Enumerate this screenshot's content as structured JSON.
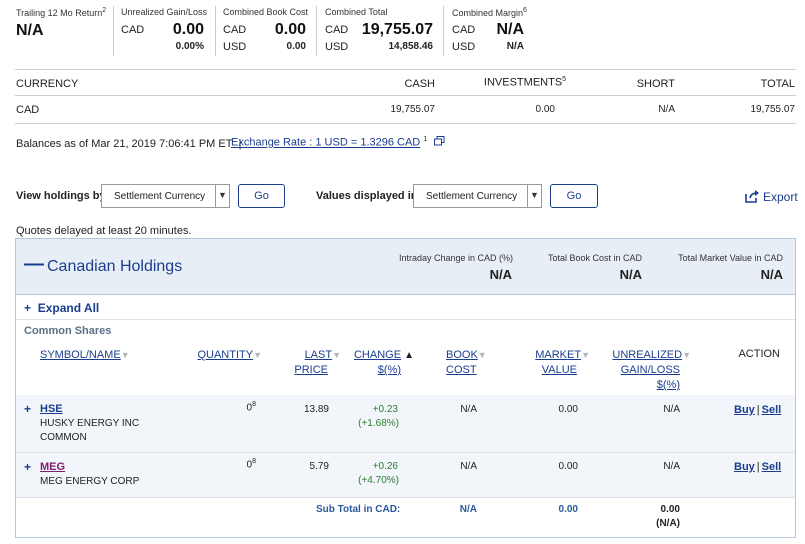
{
  "summary": {
    "trailing": {
      "label": "Trailing 12 Mo Return",
      "sup": "2",
      "value": "N/A"
    },
    "unrealized": {
      "label": "Unrealized Gain/Loss",
      "currency": "CAD",
      "value": "0.00",
      "pct": "0.00%"
    },
    "book_cost": {
      "label": "Combined Book Cost",
      "cur1": "CAD",
      "val1": "0.00",
      "cur2": "USD",
      "val2": "0.00"
    },
    "total": {
      "label": "Combined Total",
      "cur1": "CAD",
      "val1": "19,755.07",
      "cur2": "USD",
      "val2": "14,858.46"
    },
    "margin": {
      "label": "Combined Margin",
      "sup": "6",
      "cur1": "CAD",
      "val1": "N/A",
      "cur2": "USD",
      "val2": "N/A"
    }
  },
  "balances_table": {
    "headers": {
      "currency": "CURRENCY",
      "cash": "CASH",
      "investments": "INVESTMENTS",
      "investments_sup": "5",
      "short": "SHORT",
      "total": "TOTAL"
    },
    "row": {
      "currency": "CAD",
      "cash": "19,755.07",
      "investments": "0.00",
      "short": "N/A",
      "total": "19,755.07"
    }
  },
  "balances_info": {
    "text": "Balances as of Mar 21, 2019 7:06:41 PM ET",
    "separator": "|",
    "exchange_link": "Exchange Rate : 1 USD = 1.3296 CAD",
    "exchange_sup": "1"
  },
  "controls": {
    "view_label": "View holdings by",
    "view_value": "Settlement Currency",
    "go1": "Go",
    "values_label": "Values displayed in",
    "values_value": "Settlement Currency",
    "go2": "Go",
    "export": "Export"
  },
  "quotes_note": "Quotes delayed at least 20 minutes.",
  "holdings": {
    "collapse_symbol": "—",
    "title": "Canadian Holdings",
    "intraday_label": "Intraday Change in CAD (%)",
    "intraday_value": "N/A",
    "book_label": "Total Book Cost in CAD",
    "book_value": "N/A",
    "market_label": "Total Market Value in CAD",
    "market_value": "N/A",
    "expand_all": "Expand All",
    "plus": "+",
    "section": "Common Shares",
    "columns": {
      "symbol": "SYMBOL/NAME",
      "quantity": "QUANTITY",
      "last_price_1": "LAST",
      "last_price_2": "PRICE",
      "change_1": "CHANGE",
      "change_arrow": "▲",
      "change_2": "$(%)",
      "book_1": "BOOK",
      "book_2": "COST",
      "market_1": "MARKET",
      "market_2": "VALUE",
      "unrealized_1": "UNREALIZED",
      "unrealized_2": "GAIN/LOSS",
      "unrealized_3": "$(%)",
      "action": "ACTION"
    },
    "rows": [
      {
        "symbol": "HSE",
        "name_1": "HUSKY ENERGY INC",
        "name_2": "COMMON",
        "qty": "0",
        "qty_sup": "8",
        "last": "13.89",
        "change": "+0.23",
        "change_pct": "(+1.68%)",
        "book": "N/A",
        "market": "0.00",
        "unrealized": "N/A",
        "buy": "Buy",
        "sell": "Sell",
        "sep": "|"
      },
      {
        "symbol": "MEG",
        "name_1": "MEG ENERGY CORP",
        "name_2": "",
        "qty": "0",
        "qty_sup": "8",
        "last": "5.79",
        "change": "+0.26",
        "change_pct": "(+4.70%)",
        "book": "N/A",
        "market": "0.00",
        "unrealized": "N/A",
        "buy": "Buy",
        "sell": "Sell",
        "sep": "|"
      }
    ],
    "subtotal": {
      "label": "Sub Total in CAD:",
      "book": "N/A",
      "market": "0.00",
      "unrealized": "0.00",
      "unrealized_pct": "(N/A)"
    }
  }
}
